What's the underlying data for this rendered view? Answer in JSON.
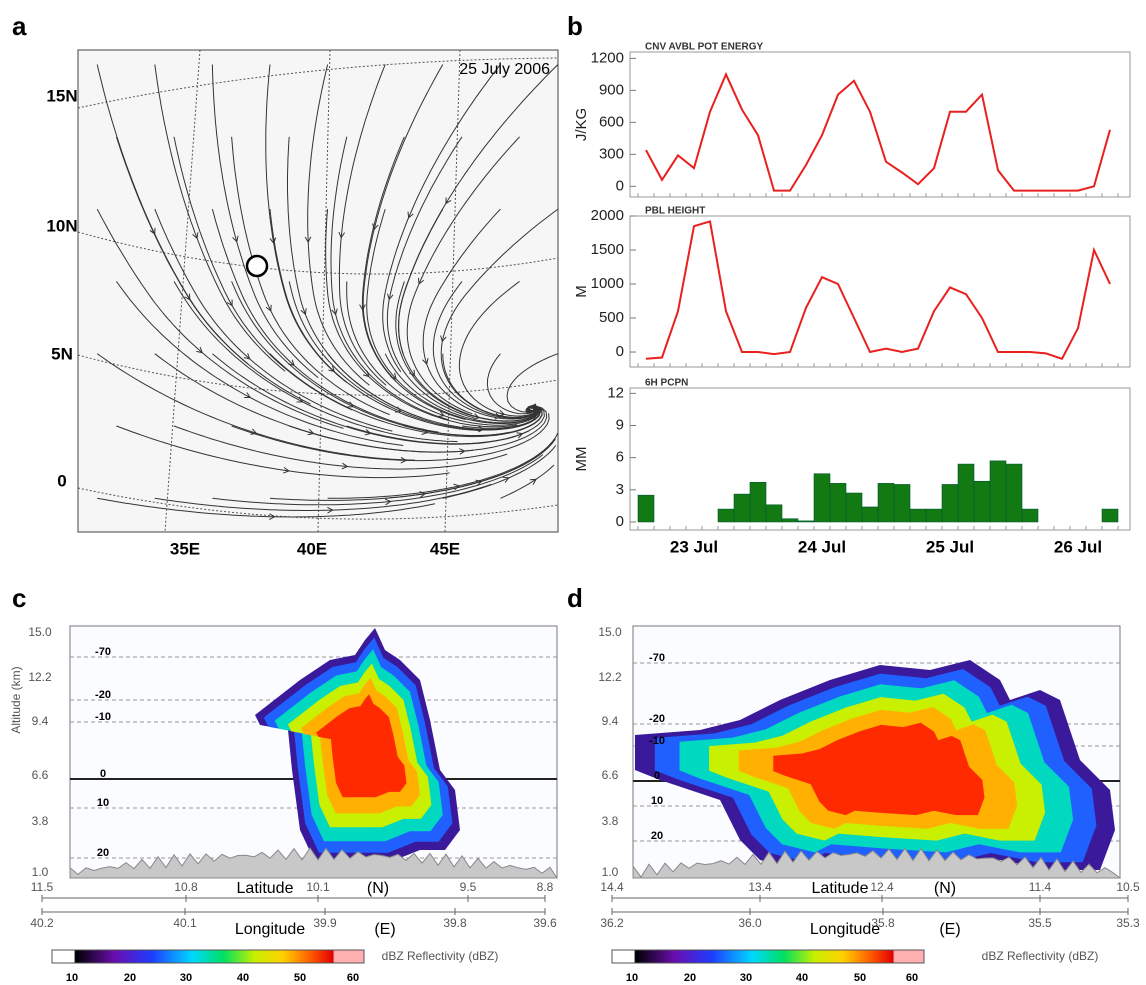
{
  "panel_labels": [
    "a",
    "b",
    "c",
    "d"
  ],
  "map": {
    "date": "25 July 2006",
    "lat_labels": [
      "15N",
      "10N",
      "5N",
      "0"
    ],
    "lon_labels": [
      "35E",
      "40E",
      "45E"
    ]
  },
  "chart_data": [
    {
      "type": "line",
      "title": "CNV AVBL POT ENERGY",
      "y_label": "J/KG",
      "color": "#e8201e",
      "values": [
        340,
        60,
        290,
        170,
        700,
        1050,
        720,
        480,
        -40,
        -40,
        200,
        480,
        860,
        990,
        700,
        230,
        130,
        20,
        170,
        700,
        700,
        860,
        150,
        -40,
        -40,
        -40,
        -40,
        -40,
        0,
        530
      ],
      "ylim": [
        -100,
        1260
      ],
      "yticks": [
        0,
        300,
        600,
        900,
        1200
      ]
    },
    {
      "type": "line",
      "title": "PBL HEIGHT",
      "y_label": "M",
      "color": "#e8201e",
      "values": [
        -100,
        -80,
        600,
        1850,
        1920,
        600,
        0,
        0,
        -30,
        0,
        650,
        1100,
        1000,
        500,
        0,
        50,
        0,
        50,
        600,
        950,
        850,
        500,
        0,
        0,
        0,
        -20,
        -100,
        350,
        1500,
        1000
      ],
      "ylim": [
        -220,
        2000
      ],
      "yticks": [
        0,
        500,
        1000,
        1500,
        2000
      ]
    },
    {
      "type": "bar",
      "title": "6H PCPN",
      "y_label": "MM",
      "color": "#137a13",
      "categories": [
        null,
        null,
        null,
        "23 Jul",
        null,
        null,
        null,
        null,
        null,
        null,
        null,
        "24 Jul",
        null,
        null,
        null,
        null,
        null,
        null,
        null,
        "25 Jul",
        null,
        null,
        null,
        null,
        null,
        null,
        null,
        "26 Jul",
        null,
        null
      ],
      "values": [
        2.5,
        0,
        0,
        0,
        0,
        1.2,
        2.6,
        3.7,
        1.6,
        0.3,
        0.1,
        4.5,
        3.6,
        2.7,
        1.4,
        3.6,
        3.5,
        1.2,
        1.2,
        3.5,
        5.4,
        3.8,
        5.7,
        5.4,
        1.2,
        0,
        0,
        0,
        0,
        1.2
      ],
      "ylim": [
        -0.75,
        12.5
      ],
      "yticks": [
        0,
        3,
        6,
        9,
        12
      ]
    }
  ],
  "sections": [
    {
      "y_label": "Altitude (km)",
      "yticks": [
        "15.0",
        "12.2",
        "9.4",
        "6.6",
        "3.8",
        "1.0"
      ],
      "isotherms": [
        "-70",
        "-20",
        "-10",
        "0",
        "10",
        "20"
      ],
      "lat_label": "Latitude",
      "lat_unit": "(N)",
      "lat_ticks": [
        "11.5",
        "10.8",
        "10.1",
        "9.5",
        "8.8"
      ],
      "lon_label": "Longitude",
      "lon_unit": "(E)",
      "lon_ticks": [
        "40.2",
        "40.1",
        "39.9",
        "39.8",
        "39.6"
      ],
      "colorbar_ticks": [
        "10",
        "20",
        "30",
        "40",
        "50",
        "60"
      ],
      "colorbar_label": "dBZ Reflectivity (dBZ)"
    },
    {
      "yticks": [
        "15.0",
        "12.2",
        "9.4",
        "6.6",
        "3.8",
        "1.0"
      ],
      "isotherms": [
        "-70",
        "-20",
        "-10",
        "0",
        "10",
        "20"
      ],
      "lat_label": "Latitude",
      "lat_unit": "(N)",
      "lat_ticks": [
        "14.4",
        "13.4",
        "12.4",
        "11.4",
        "10.5"
      ],
      "lon_label": "Longitude",
      "lon_unit": "(E)",
      "lon_ticks": [
        "36.2",
        "36.0",
        "35.8",
        "35.5",
        "35.3"
      ],
      "colorbar_ticks": [
        "10",
        "20",
        "30",
        "40",
        "50",
        "60"
      ],
      "colorbar_label": "dBZ Reflectivity (dBZ)"
    }
  ]
}
